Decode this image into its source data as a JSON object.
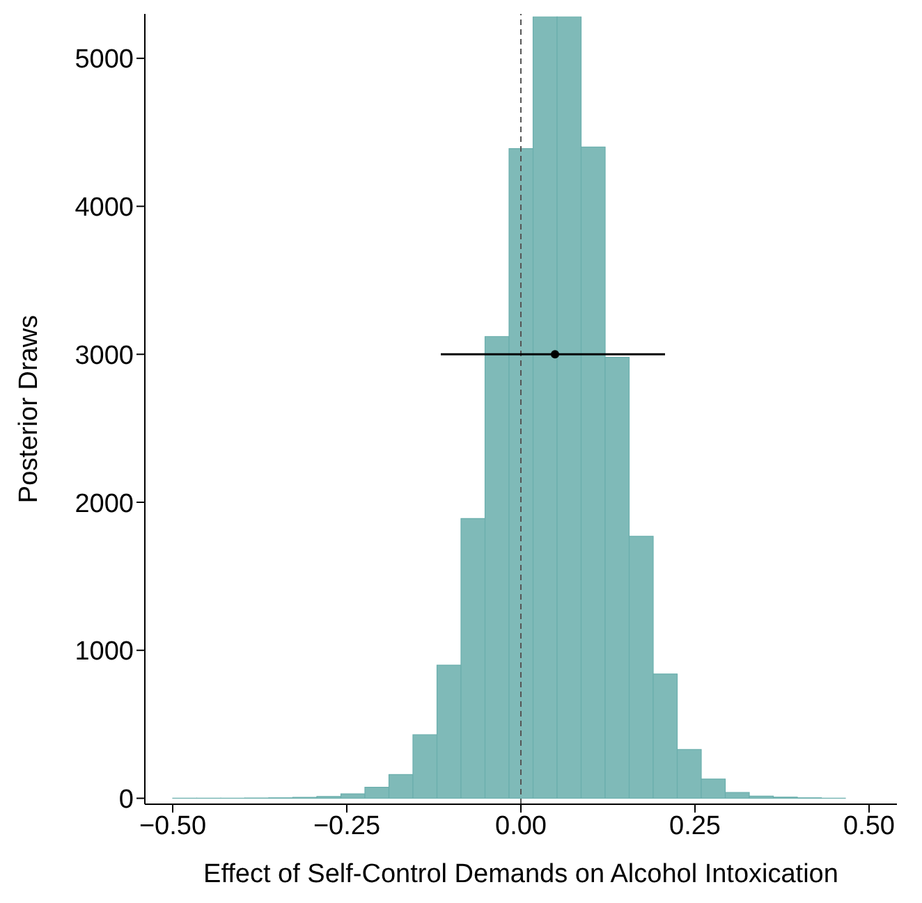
{
  "chart_data": {
    "type": "histogram",
    "xlabel": "Effect of Self-Control Demands on Alcohol Intoxication",
    "ylabel": "Posterior Draws",
    "bins": [
      -0.5,
      -0.4655,
      -0.431,
      -0.3965,
      -0.362,
      -0.3275,
      -0.293,
      -0.2585,
      -0.224,
      -0.1895,
      -0.155,
      -0.1205,
      -0.086,
      -0.0515,
      -0.017,
      0.0175,
      0.052,
      0.0865,
      0.121,
      0.1555,
      0.19,
      0.2245,
      0.259,
      0.2935,
      0.328,
      0.3625,
      0.397,
      0.4315,
      0.466
    ],
    "values": [
      1,
      1,
      1,
      2,
      3,
      6,
      12,
      30,
      75,
      160,
      430,
      900,
      1890,
      3120,
      4390,
      5280,
      5280,
      4400,
      2980,
      1770,
      840,
      330,
      130,
      40,
      15,
      8,
      3,
      1
    ],
    "color": "#7fbab8",
    "series": [
      {
        "type": "scatter",
        "color": "#000000",
        "x": [
          0.049
        ],
        "values": [
          3000
        ],
        "xerrors": [
          [
            -0.115,
            0.207
          ]
        ]
      }
    ],
    "ref_lines": [
      {
        "axis": "x",
        "value": 0,
        "line_style": "dashed",
        "color": "#555555"
      }
    ],
    "xlim": [
      -0.54,
      0.54
    ],
    "xticks": [
      {
        "value": -0.5,
        "label": "−0.50"
      },
      {
        "value": -0.25,
        "label": "−0.25"
      },
      {
        "value": 0,
        "label": "0.00"
      },
      {
        "value": 0.25,
        "label": "0.25"
      },
      {
        "value": 0.5,
        "label": "0.50"
      }
    ],
    "ylim": [
      -40,
      5300
    ],
    "yticks": [
      0,
      1000,
      2000,
      3000,
      4000,
      5000
    ]
  }
}
